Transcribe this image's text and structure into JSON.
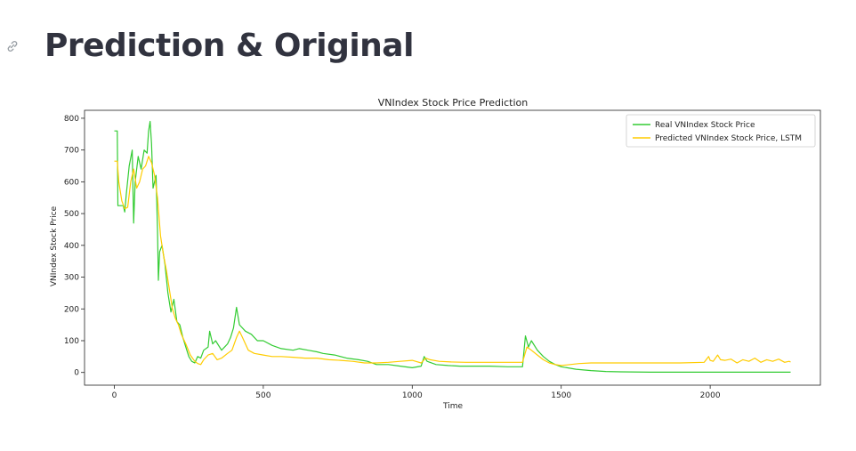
{
  "page": {
    "title": "Prediction & Original"
  },
  "icons": {
    "anchor": "link-icon"
  },
  "colors": {
    "real": "#33cc33",
    "predicted": "#ffcc00",
    "title_text": "#31333f"
  },
  "chart_data": {
    "type": "line",
    "title": "VNIndex Stock Price Prediction",
    "xlabel": "Time",
    "ylabel": "VNIndex Stock Price",
    "xlim": [
      -100,
      2370
    ],
    "ylim": [
      -40,
      825
    ],
    "xticks": [
      0,
      500,
      1000,
      1500,
      2000
    ],
    "yticks": [
      0,
      100,
      200,
      300,
      400,
      500,
      600,
      700,
      800
    ],
    "legend_position": "top-right",
    "grid": false,
    "series": [
      {
        "name": "Real VNIndex Stock Price",
        "color": "#33cc33",
        "points": [
          [
            0,
            760
          ],
          [
            10,
            760
          ],
          [
            12,
            525
          ],
          [
            30,
            525
          ],
          [
            35,
            505
          ],
          [
            40,
            560
          ],
          [
            50,
            650
          ],
          [
            60,
            700
          ],
          [
            65,
            470
          ],
          [
            70,
            600
          ],
          [
            80,
            680
          ],
          [
            90,
            640
          ],
          [
            100,
            700
          ],
          [
            110,
            690
          ],
          [
            115,
            760
          ],
          [
            120,
            790
          ],
          [
            125,
            720
          ],
          [
            130,
            580
          ],
          [
            140,
            620
          ],
          [
            145,
            450
          ],
          [
            148,
            290
          ],
          [
            152,
            380
          ],
          [
            160,
            400
          ],
          [
            170,
            340
          ],
          [
            180,
            250
          ],
          [
            190,
            190
          ],
          [
            200,
            230
          ],
          [
            210,
            160
          ],
          [
            220,
            150
          ],
          [
            230,
            110
          ],
          [
            240,
            80
          ],
          [
            250,
            50
          ],
          [
            260,
            35
          ],
          [
            270,
            30
          ],
          [
            280,
            50
          ],
          [
            290,
            45
          ],
          [
            300,
            70
          ],
          [
            315,
            80
          ],
          [
            320,
            130
          ],
          [
            330,
            90
          ],
          [
            340,
            100
          ],
          [
            360,
            70
          ],
          [
            380,
            90
          ],
          [
            390,
            110
          ],
          [
            400,
            140
          ],
          [
            410,
            205
          ],
          [
            420,
            150
          ],
          [
            440,
            130
          ],
          [
            460,
            120
          ],
          [
            480,
            100
          ],
          [
            500,
            100
          ],
          [
            530,
            85
          ],
          [
            560,
            75
          ],
          [
            600,
            70
          ],
          [
            620,
            75
          ],
          [
            650,
            70
          ],
          [
            680,
            65
          ],
          [
            700,
            60
          ],
          [
            740,
            55
          ],
          [
            780,
            45
          ],
          [
            820,
            40
          ],
          [
            850,
            35
          ],
          [
            880,
            25
          ],
          [
            920,
            25
          ],
          [
            960,
            20
          ],
          [
            1000,
            15
          ],
          [
            1030,
            20
          ],
          [
            1040,
            50
          ],
          [
            1050,
            35
          ],
          [
            1080,
            25
          ],
          [
            1120,
            22
          ],
          [
            1160,
            20
          ],
          [
            1200,
            20
          ],
          [
            1260,
            20
          ],
          [
            1320,
            18
          ],
          [
            1370,
            18
          ],
          [
            1380,
            115
          ],
          [
            1390,
            80
          ],
          [
            1400,
            100
          ],
          [
            1420,
            70
          ],
          [
            1440,
            50
          ],
          [
            1460,
            35
          ],
          [
            1480,
            25
          ],
          [
            1500,
            18
          ],
          [
            1550,
            10
          ],
          [
            1600,
            6
          ],
          [
            1650,
            3
          ],
          [
            1700,
            2
          ],
          [
            1800,
            1
          ],
          [
            2000,
            1
          ],
          [
            2150,
            1
          ],
          [
            2270,
            1
          ]
        ]
      },
      {
        "name": "Predicted VNIndex Stock Price, LSTM",
        "color": "#ffcc00",
        "points": [
          [
            0,
            665
          ],
          [
            10,
            665
          ],
          [
            15,
            600
          ],
          [
            25,
            540
          ],
          [
            35,
            515
          ],
          [
            45,
            520
          ],
          [
            55,
            600
          ],
          [
            65,
            640
          ],
          [
            75,
            580
          ],
          [
            85,
            600
          ],
          [
            95,
            640
          ],
          [
            105,
            650
          ],
          [
            115,
            680
          ],
          [
            125,
            660
          ],
          [
            135,
            620
          ],
          [
            145,
            550
          ],
          [
            155,
            430
          ],
          [
            165,
            370
          ],
          [
            175,
            320
          ],
          [
            185,
            260
          ],
          [
            195,
            200
          ],
          [
            205,
            170
          ],
          [
            215,
            150
          ],
          [
            225,
            120
          ],
          [
            240,
            90
          ],
          [
            255,
            55
          ],
          [
            270,
            35
          ],
          [
            280,
            28
          ],
          [
            290,
            25
          ],
          [
            300,
            40
          ],
          [
            315,
            55
          ],
          [
            330,
            60
          ],
          [
            345,
            40
          ],
          [
            360,
            45
          ],
          [
            380,
            60
          ],
          [
            395,
            70
          ],
          [
            410,
            110
          ],
          [
            420,
            130
          ],
          [
            430,
            110
          ],
          [
            450,
            70
          ],
          [
            470,
            60
          ],
          [
            500,
            55
          ],
          [
            530,
            50
          ],
          [
            560,
            50
          ],
          [
            600,
            48
          ],
          [
            640,
            45
          ],
          [
            680,
            45
          ],
          [
            720,
            40
          ],
          [
            760,
            38
          ],
          [
            800,
            35
          ],
          [
            840,
            30
          ],
          [
            880,
            30
          ],
          [
            920,
            32
          ],
          [
            960,
            35
          ],
          [
            1000,
            38
          ],
          [
            1030,
            30
          ],
          [
            1045,
            45
          ],
          [
            1060,
            40
          ],
          [
            1090,
            35
          ],
          [
            1130,
            33
          ],
          [
            1180,
            32
          ],
          [
            1240,
            32
          ],
          [
            1300,
            32
          ],
          [
            1370,
            32
          ],
          [
            1385,
            80
          ],
          [
            1400,
            70
          ],
          [
            1420,
            55
          ],
          [
            1440,
            40
          ],
          [
            1460,
            30
          ],
          [
            1480,
            25
          ],
          [
            1500,
            22
          ],
          [
            1530,
            25
          ],
          [
            1560,
            28
          ],
          [
            1600,
            30
          ],
          [
            1700,
            30
          ],
          [
            1800,
            30
          ],
          [
            1900,
            30
          ],
          [
            1980,
            32
          ],
          [
            1995,
            50
          ],
          [
            2000,
            38
          ],
          [
            2010,
            35
          ],
          [
            2025,
            55
          ],
          [
            2035,
            40
          ],
          [
            2050,
            38
          ],
          [
            2070,
            42
          ],
          [
            2090,
            30
          ],
          [
            2110,
            40
          ],
          [
            2130,
            35
          ],
          [
            2150,
            45
          ],
          [
            2170,
            32
          ],
          [
            2190,
            40
          ],
          [
            2210,
            35
          ],
          [
            2230,
            42
          ],
          [
            2250,
            32
          ],
          [
            2265,
            35
          ],
          [
            2270,
            33
          ]
        ]
      }
    ]
  }
}
